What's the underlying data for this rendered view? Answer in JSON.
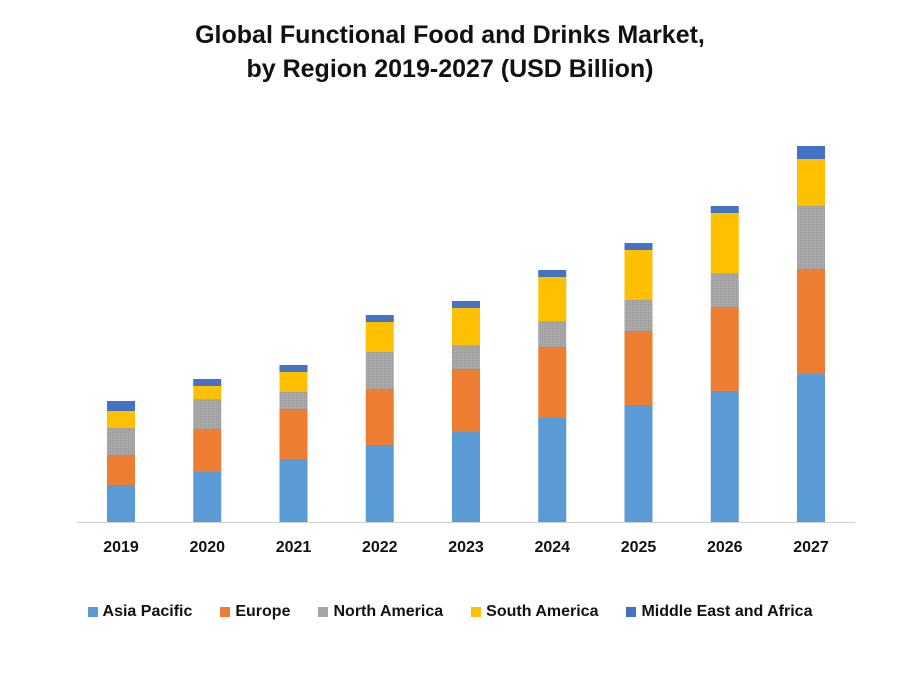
{
  "chart_data": {
    "type": "bar",
    "stacked": true,
    "title_line1": "Global Functional Food and Drinks Market,",
    "title_line2": "by Region 2019-2027 (USD Billion)",
    "xlabel": "",
    "ylabel": "",
    "categories": [
      "2019",
      "2020",
      "2021",
      "2022",
      "2023",
      "2024",
      "2025",
      "2026",
      "2027"
    ],
    "ylim": [
      0,
      376
    ],
    "grid": false,
    "legend_position": "bottom",
    "series": [
      {
        "name": "Asia Pacific",
        "color": "#5B9BD5",
        "values": [
          37,
          50,
          63,
          77,
          90,
          104,
          117,
          131,
          148
        ]
      },
      {
        "name": "Europe",
        "color": "#ED7D31",
        "values": [
          30,
          43,
          50,
          56,
          63,
          71,
          74,
          84,
          105
        ]
      },
      {
        "name": "North America",
        "color": "#A5A5A5",
        "values": [
          27,
          30,
          17,
          37,
          24,
          26,
          31,
          34,
          63
        ]
      },
      {
        "name": "South America",
        "color": "#FFC000",
        "values": [
          17,
          13,
          20,
          30,
          37,
          44,
          50,
          60,
          47
        ]
      },
      {
        "name": "Middle East and Africa",
        "color": "#4472C4",
        "values": [
          10,
          7,
          7,
          7,
          7,
          7,
          7,
          7,
          13
        ]
      }
    ]
  }
}
